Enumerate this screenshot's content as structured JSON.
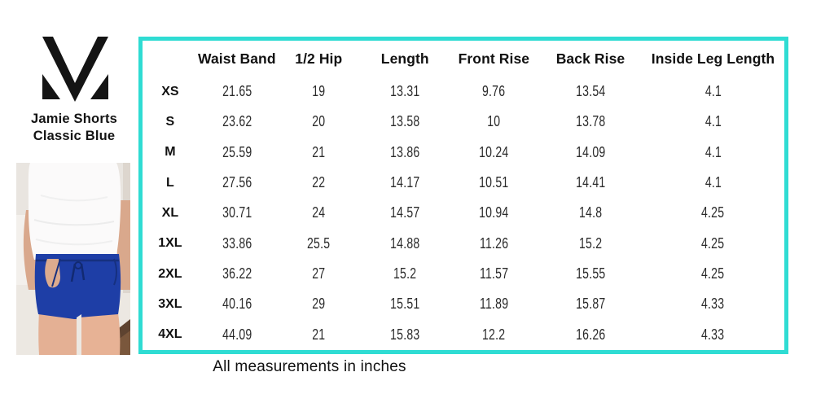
{
  "product": {
    "title_line1": "Jamie Shorts",
    "title_line2": "Classic Blue"
  },
  "brand": {
    "logo_icon": "mv-monogram-logo"
  },
  "colors": {
    "accent_teal": "#2fdcd3",
    "classic_blue": "#1e3ea6",
    "text": "#141414"
  },
  "photo": {
    "description": "model wearing white t-shirt and classic blue jamie shorts"
  },
  "chart_data": {
    "type": "table",
    "title": "Jamie Shorts Classic Blue size chart",
    "columns": [
      "Waist Band",
      "1/2 Hip",
      "Length",
      "Front Rise",
      "Back Rise",
      "Inside Leg Length"
    ],
    "rows": [
      {
        "size": "XS",
        "values": [
          "21.65",
          "19",
          "13.31",
          "9.76",
          "13.54",
          "4.1"
        ]
      },
      {
        "size": "S",
        "values": [
          "23.62",
          "20",
          "13.58",
          "10",
          "13.78",
          "4.1"
        ]
      },
      {
        "size": "M",
        "values": [
          "25.59",
          "21",
          "13.86",
          "10.24",
          "14.09",
          "4.1"
        ]
      },
      {
        "size": "L",
        "values": [
          "27.56",
          "22",
          "14.17",
          "10.51",
          "14.41",
          "4.1"
        ]
      },
      {
        "size": "XL",
        "values": [
          "30.71",
          "24",
          "14.57",
          "10.94",
          "14.8",
          "4.25"
        ]
      },
      {
        "size": "1XL",
        "values": [
          "33.86",
          "25.5",
          "14.88",
          "11.26",
          "15.2",
          "4.25"
        ]
      },
      {
        "size": "2XL",
        "values": [
          "36.22",
          "27",
          "15.2",
          "11.57",
          "15.55",
          "4.25"
        ]
      },
      {
        "size": "3XL",
        "values": [
          "40.16",
          "29",
          "15.51",
          "11.89",
          "15.87",
          "4.33"
        ]
      },
      {
        "size": "4XL",
        "values": [
          "44.09",
          "21",
          "15.83",
          "12.2",
          "16.26",
          "4.33"
        ]
      }
    ],
    "footnote": "All measurements in inches"
  }
}
